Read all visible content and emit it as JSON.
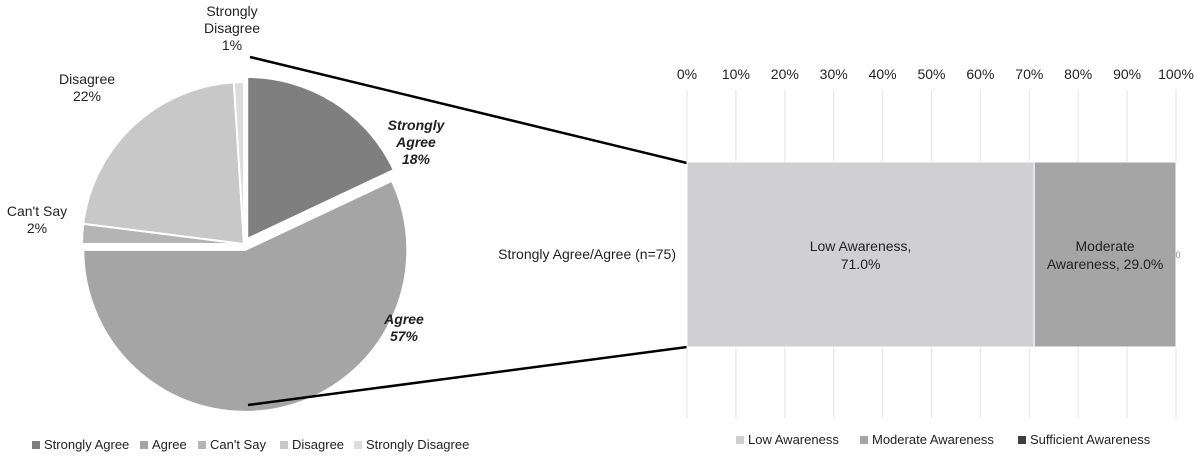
{
  "chart_data": [
    {
      "type": "pie",
      "slices": [
        {
          "name": "Strongly Agree",
          "value": 18,
          "label": [
            "Strongly",
            "Agree",
            "18%"
          ],
          "color": "#7f7f7f",
          "exploded": true
        },
        {
          "name": "Agree",
          "value": 57,
          "label": [
            "Agree",
            "57%"
          ],
          "color": "#a5a5a5",
          "exploded": true
        },
        {
          "name": "Can't Say",
          "value": 2,
          "label": [
            "Can't Say",
            "2%"
          ],
          "color": "#b4b4b4",
          "exploded": false
        },
        {
          "name": "Disagree",
          "value": 22,
          "label": [
            "Disagree",
            "22%"
          ],
          "color": "#c8c8c8",
          "exploded": false
        },
        {
          "name": "Strongly Disagree",
          "value": 1,
          "label": [
            "Strongly",
            "Disagree",
            "1%"
          ],
          "color": "#dcdcdc",
          "exploded": false
        }
      ],
      "legend": [
        "Strongly Agree",
        "Agree",
        "Can't Say",
        "Disagree",
        "Strongly Disagree"
      ],
      "legend_position": "bottom"
    },
    {
      "type": "bar",
      "orientation": "horizontal",
      "stacked": true,
      "category_label": "Strongly Agree/Agree (n=75)",
      "xlim": [
        0,
        100
      ],
      "x_ticks": [
        "0%",
        "10%",
        "20%",
        "30%",
        "40%",
        "50%",
        "60%",
        "70%",
        "80%",
        "90%",
        "100%"
      ],
      "grid": true,
      "series": [
        {
          "name": "Low Awareness",
          "value": 71.0,
          "label": [
            "Low Awareness,",
            "71.0%"
          ],
          "color": "#d0cfd2"
        },
        {
          "name": "Moderate Awareness",
          "value": 29.0,
          "label": [
            "Moderate",
            "Awareness, 29.0%"
          ],
          "color": "#a5a5a5"
        },
        {
          "name": "Sufficient Awareness",
          "value": 0,
          "label": [
            "0"
          ],
          "color": "#3f3f3f"
        }
      ],
      "legend": [
        "Low Awareness",
        "Moderate Awareness",
        "Sufficient Awareness"
      ],
      "legend_position": "bottom"
    }
  ]
}
